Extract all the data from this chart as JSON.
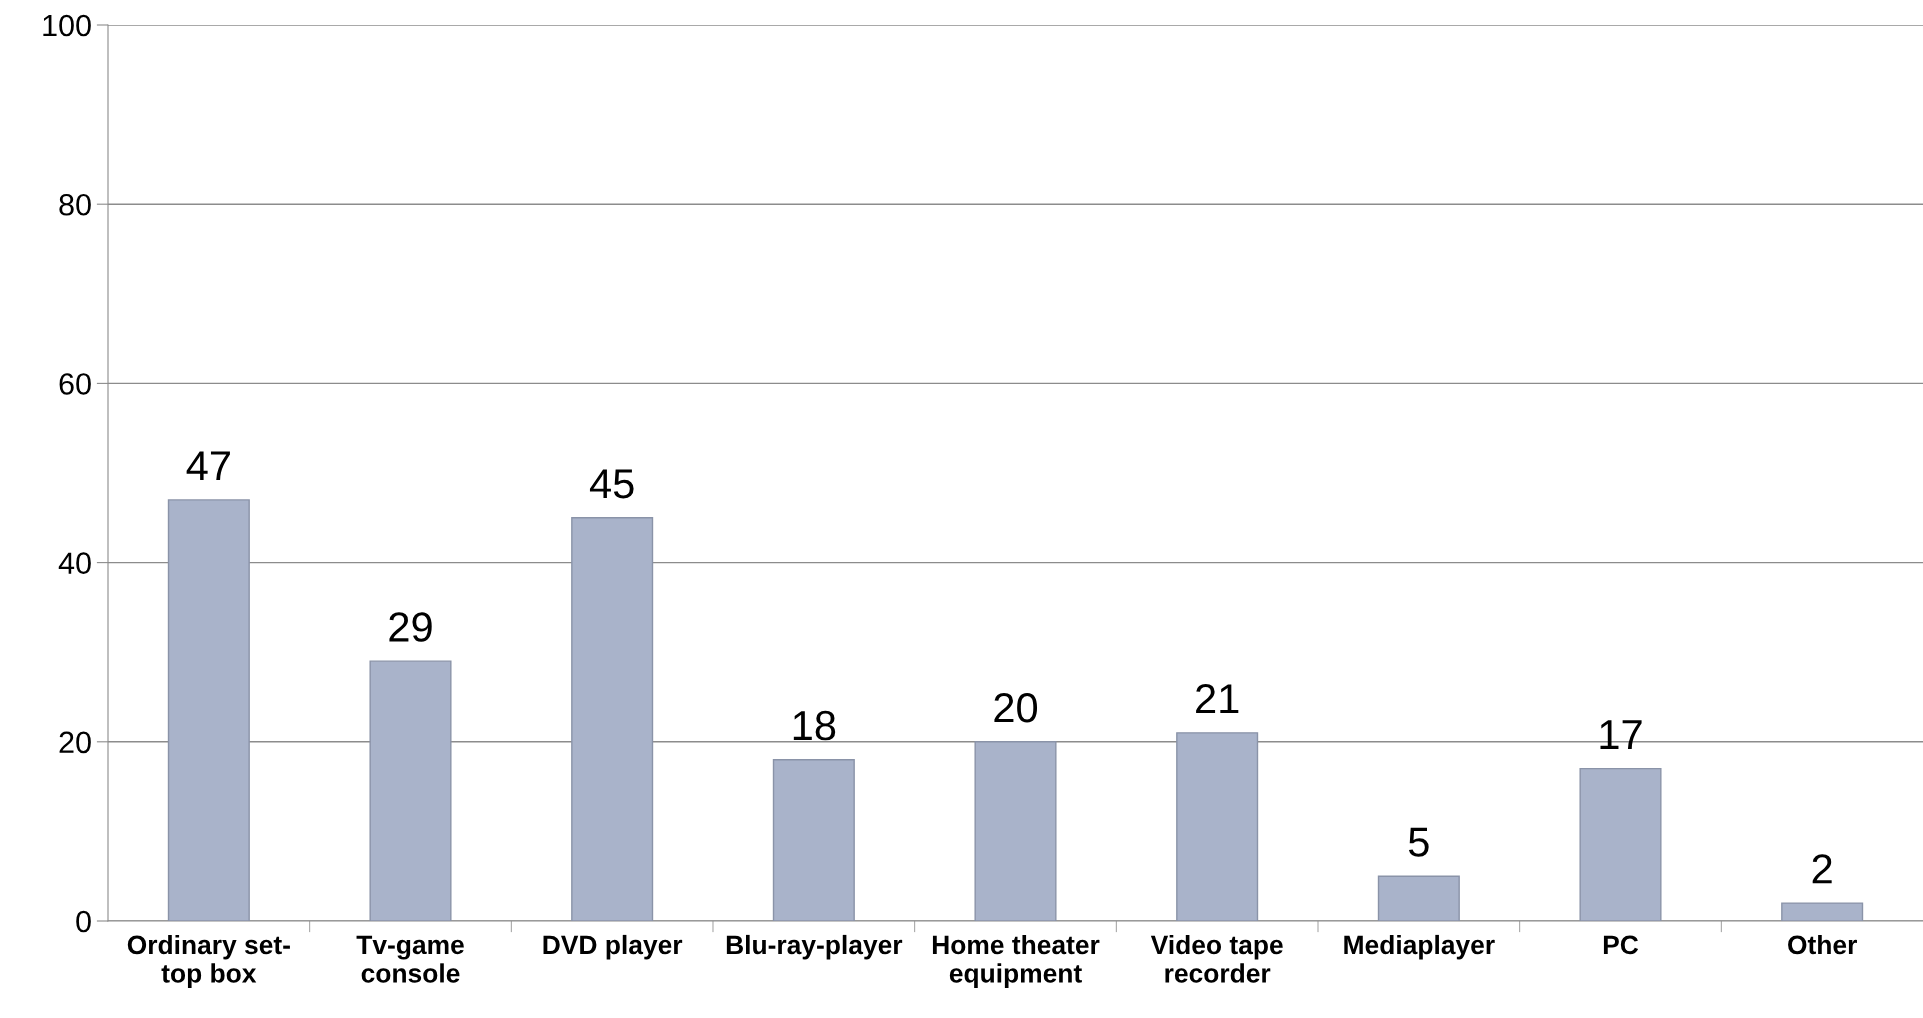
{
  "chart_data": {
    "type": "bar",
    "categories": [
      "Ordinary set-\ntop box",
      "Tv-game\nconsole",
      "DVD player",
      "Blu-ray-player",
      "Home theater\nequipment",
      "Video tape\nrecorder",
      "Mediaplayer",
      "PC",
      "Other"
    ],
    "values": [
      47,
      29,
      45,
      18,
      20,
      21,
      5,
      17,
      2
    ],
    "color": "#a9b3ca",
    "ylim": [
      0,
      100
    ],
    "yticks": [
      0,
      20,
      40,
      60,
      80,
      100
    ],
    "grid": "y",
    "data_labels": true
  }
}
